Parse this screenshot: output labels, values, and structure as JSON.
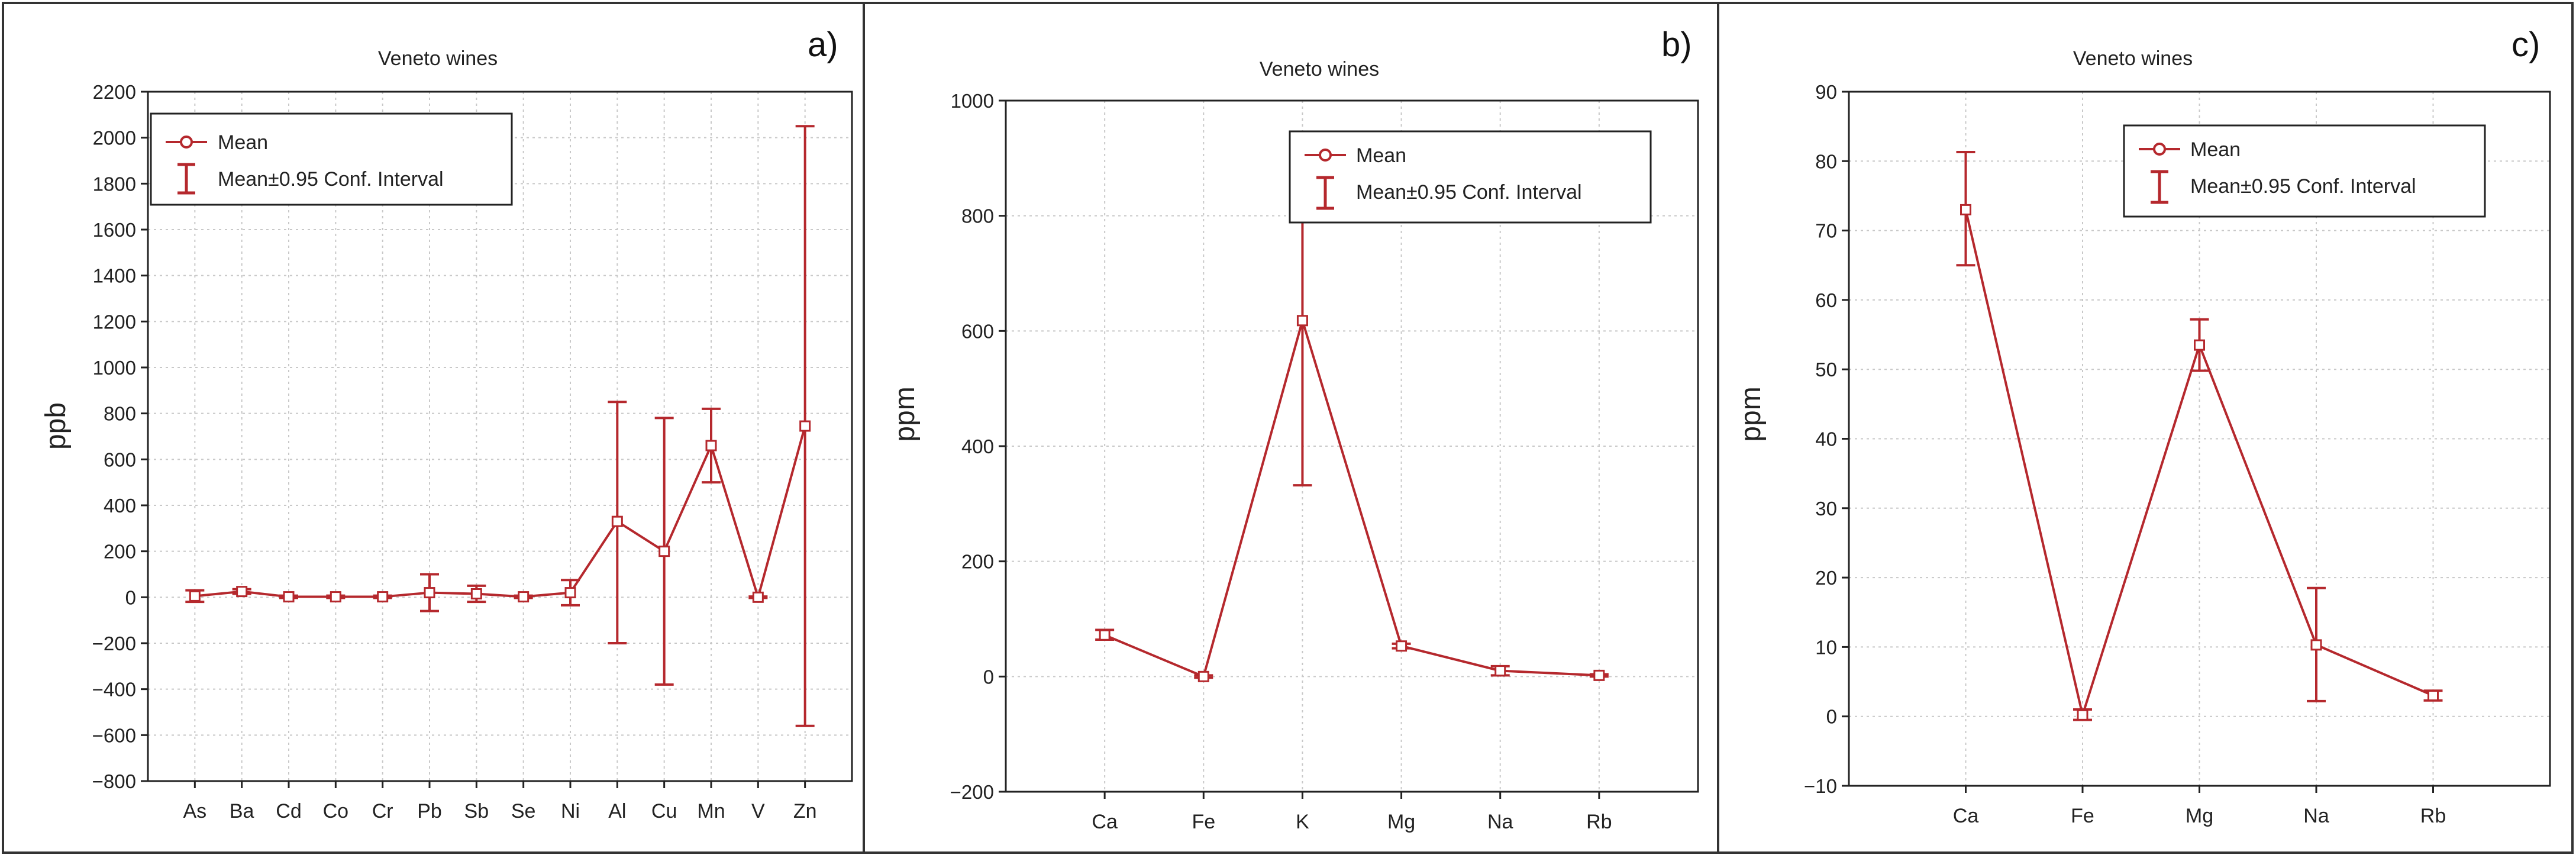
{
  "chart_data": [
    {
      "type": "line",
      "panel_label": "a)",
      "title": "Veneto wines",
      "ylabel": "ppb",
      "xlabel": "",
      "categories": [
        "As",
        "Ba",
        "Cd",
        "Co",
        "Cr",
        "Pb",
        "Sb",
        "Se",
        "Ni",
        "Al",
        "Cu",
        "Mn",
        "V",
        "Zn"
      ],
      "ylim": [
        -800,
        2200
      ],
      "yticks": [
        -800,
        -600,
        -400,
        -200,
        0,
        200,
        400,
        600,
        800,
        1000,
        1200,
        1400,
        1600,
        1800,
        2000,
        2200
      ],
      "grid": true,
      "legend_position": "top-left",
      "legend": [
        "Mean",
        "Mean±0.95 Conf. Interval"
      ],
      "series": [
        {
          "name": "Mean",
          "values": [
            5,
            25,
            2,
            2,
            2,
            20,
            15,
            2,
            20,
            330,
            200,
            660,
            0,
            745
          ],
          "ci_low": [
            -20,
            15,
            -3,
            -3,
            -3,
            -60,
            -20,
            -3,
            -35,
            -200,
            -380,
            500,
            -3,
            -560
          ],
          "ci_high": [
            30,
            35,
            7,
            7,
            7,
            100,
            50,
            7,
            75,
            850,
            780,
            820,
            3,
            2050
          ]
        }
      ],
      "color": "#b5282d"
    },
    {
      "type": "line",
      "panel_label": "b)",
      "title": "Veneto wines",
      "ylabel": "ppm",
      "xlabel": "",
      "categories": [
        "Ca",
        "Fe",
        "K",
        "Mg",
        "Na",
        "Rb"
      ],
      "ylim": [
        -200,
        1000
      ],
      "yticks": [
        -200,
        0,
        200,
        400,
        600,
        800,
        1000
      ],
      "grid": true,
      "legend_position": "top-right",
      "legend": [
        "Mean",
        "Mean±0.95 Conf. Interval"
      ],
      "series": [
        {
          "name": "Mean",
          "values": [
            72,
            0,
            618,
            53,
            10,
            2
          ],
          "ci_low": [
            64,
            -2,
            332,
            49,
            2,
            0
          ],
          "ci_high": [
            81,
            2,
            906,
            57,
            18,
            4
          ]
        }
      ],
      "color": "#b5282d"
    },
    {
      "type": "line",
      "panel_label": "c)",
      "title": "Veneto wines",
      "ylabel": "ppm",
      "xlabel": "",
      "categories": [
        "Ca",
        "Fe",
        "Mg",
        "Na",
        "Rb"
      ],
      "ylim": [
        -10,
        90
      ],
      "yticks": [
        -10,
        0,
        10,
        20,
        30,
        40,
        50,
        60,
        70,
        80,
        90
      ],
      "grid": true,
      "legend_position": "top-right",
      "legend": [
        "Mean",
        "Mean±0.95 Conf. Interval"
      ],
      "series": [
        {
          "name": "Mean",
          "values": [
            73,
            0.2,
            53.5,
            10.3,
            3
          ],
          "ci_low": [
            65,
            -0.5,
            49.8,
            2.2,
            2.3
          ],
          "ci_high": [
            81.3,
            1,
            57.2,
            18.5,
            3.7
          ]
        }
      ],
      "color": "#b5282d"
    }
  ]
}
